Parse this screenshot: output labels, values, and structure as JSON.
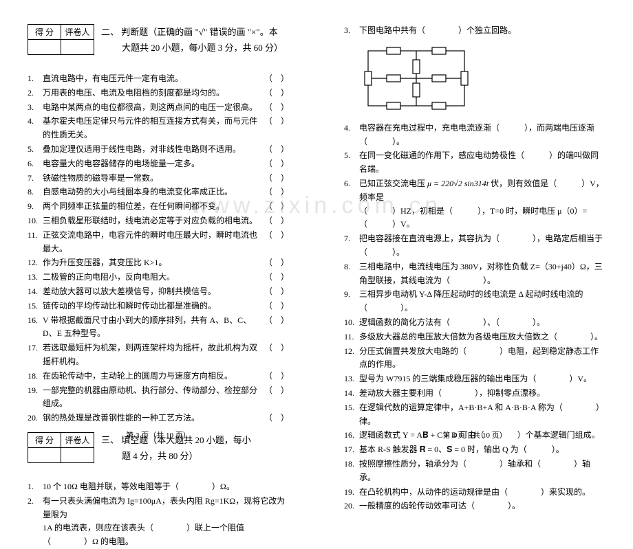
{
  "score_header": {
    "score_label": "得 分",
    "grader_label": "评卷人"
  },
  "page_left": {
    "section2": {
      "title_prefix": "二、 判断题（正确的画 \"√\" 错误的画 \"×\"。本",
      "title_suffix": "大题共 20 小题，每小题 3 分，共 60 分）",
      "items": [
        "直流电路中，有电压元件一定有电流。",
        "万用表的电压、电流及电阻档的刻度都是均匀的。",
        "电路中某两点的电位都很高，则这两点间的电压一定很高。",
        "基尔霍夫电压定律只与元件的相互连接方式有关，而与元件的性质无关。",
        "叠加定理仅适用于线性电路，对非线性电路则不适用。",
        "电容量大的电容器储存的电场能量一定多。",
        "铁磁性物质的磁导率是一常数。",
        "自感电动势的大小与线圈本身的电流变化率成正比。",
        "两个同频率正弦量的相位差，在任何瞬间都不变。",
        "三相负载星形联结时，线电流必定等于对应负载的相电流。",
        "正弦交流电路中，电容元件的瞬时电压最大时，瞬时电流也最大。",
        "作为升压变压器，其变压比 K>1。",
        "二极管的正向电阻小，反向电阻大。",
        "差动放大器可以放大差模信号，抑制共模信号。",
        "链传动的平均传动比和瞬时传动比都是准确的。",
        "V 带根据截面尺寸由小到大的顺序排列，共有 A、B、C、D、E 五种型号。",
        "若选取最短杆为机架，则两连架杆均为摇杆，故此机构为双摇杆机构。",
        "在齿轮传动中，主动轮上的圆周力与速度方向相反。",
        "一部完整的机器由原动机、执行部分、传动部分、检控部分组成。",
        "钢的热处理是改善钢性能的一种工艺方法。"
      ]
    },
    "section3": {
      "title_prefix": "三、 填空题（本大题共 20 小题，每小",
      "title_suffix": "题 4 分，共 80 分）",
      "q1": "10 个 10Ω 电阻并联，等效电阻等于（　　　　）Ω。",
      "q2_a": "有一只表头满偏电流为 Ig=100μA，表头内阻 Rg=1KΩ，现将它改为量限为",
      "q2_b": "1A 的电流表，则应在该表头（　　　　）联上一个阻值（　　　　）Ω 的电阻。"
    },
    "footer": "第 3 页（共 10 页）"
  },
  "page_right": {
    "q3_top": "下图电路中共有（　　　　）个独立回路。",
    "items": [
      {
        "n": 4,
        "t": "电容器在充电过程中，充电电流逐渐（　　　），而两端电压逐渐（　　　）。"
      },
      {
        "n": 5,
        "t": "在同一变化磁通的作用下，感应电动势极性（　　　）的端叫做同名端。"
      },
      {
        "n": 7,
        "t": "把电容器接在直流电源上，其容抗为（　　　　），电路定后相当于（　　　）。"
      },
      {
        "n": 8,
        "t": "三相电路中，电流线电压为 380V，对称性负载 Z=（30+j40）Ω，三角型联接，其线电流为（　　　　）。"
      },
      {
        "n": 9,
        "t": "三相异步电动机 Y-Δ 降压起动时的线电流是 Δ 起动时线电流的（　　　　）。"
      },
      {
        "n": 10,
        "t": "逻辑函数的简化方法有（　　　　）、（　　　　）。"
      },
      {
        "n": 11,
        "t": "多级放大器总的电压放大倍数为各级电压放大倍数之（　　　　）。"
      },
      {
        "n": 12,
        "t": "分压式偏置共发放大电路的（　　　　）电阻，起到稳定静态工作点的作用。"
      },
      {
        "n": 13,
        "t": "型号为 W7915 的三端集成稳压器的输出电压为（　　　　）V。"
      },
      {
        "n": 14,
        "t": "差动放大器主要利用（　　　　），抑制零点漂移。"
      },
      {
        "n": 15,
        "t": "在逻辑代数的运算定律中，A+B·B+A 和 A·B·B·A 称为（　　　　）律。"
      }
    ],
    "q6_a": "已知正弦交流电压",
    "q6_b": "伏，则有效值是（　　　）V，频率是",
    "q6_c": "（　　　）HZ，初相是（　　　），T=0 时，瞬时电压 μ（0）=（　　　）V。",
    "q16": "逻辑函数式 Y = A𝐁̄ + C + D 可由（　　　　）个基本逻辑门组成。",
    "q17": "基本 R-S 触发器 𝐑̄ = 0、𝐒̄ = 0 时，输出 Q 为（　　　）。",
    "q18": "按照摩擦性质分，轴承分为（　　　　）轴承和（　　　　）轴承。",
    "q19": "在凸轮机构中，从动件的运动规律是由（　　　　）来实现的。",
    "q20": "一般精度的齿轮传动效率可达（　　　　）。",
    "footer": "第 4 页（共 10 页）"
  },
  "mu_formula": "μ = 220√2 sin314t",
  "watermark": "www.zixin.com.cn"
}
